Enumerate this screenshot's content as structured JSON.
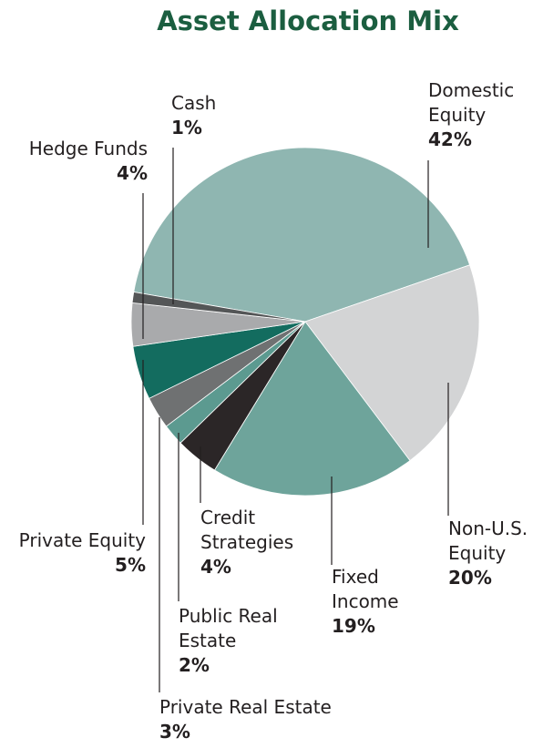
{
  "chart_data": {
    "type": "pie",
    "title": "Asset Allocation Mix",
    "categories": [
      "Domestic Equity",
      "Non-U.S. Equity",
      "Fixed Income",
      "Credit Strategies",
      "Public Real Estate",
      "Private Real Estate",
      "Private Equity",
      "Hedge Funds",
      "Cash"
    ],
    "values": [
      42,
      20,
      19,
      4,
      2,
      3,
      5,
      4,
      1
    ],
    "value_labels": [
      "42%",
      "20%",
      "19%",
      "4%",
      "2%",
      "3%",
      "5%",
      "4%",
      "1%"
    ],
    "colors": [
      "#8fb6b1",
      "#d3d4d5",
      "#6ea49b",
      "#2b2627",
      "#5c9a90",
      "#6f7172",
      "#136c5f",
      "#a9aaac",
      "#545657"
    ]
  }
}
